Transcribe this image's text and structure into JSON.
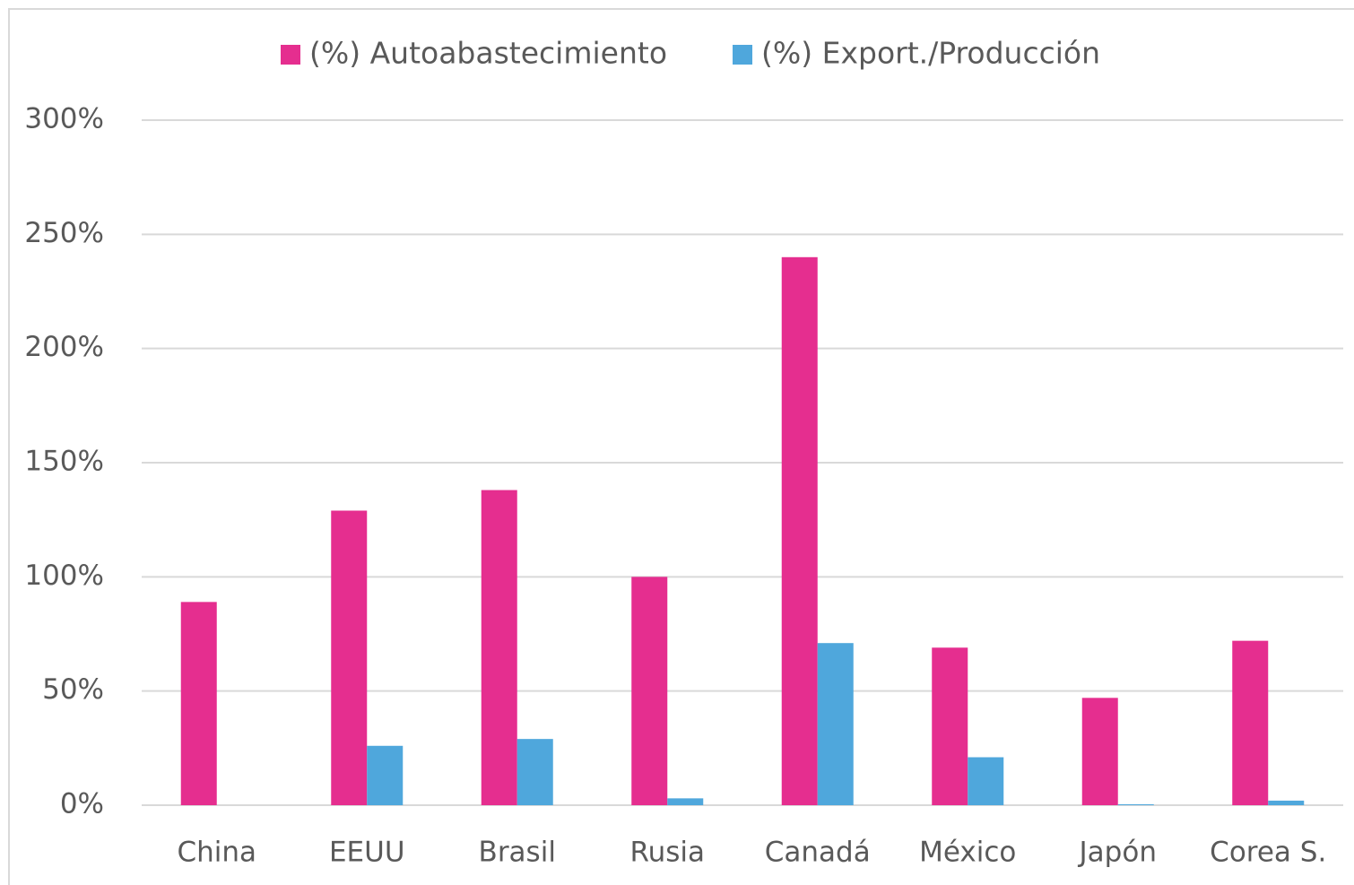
{
  "chart_data": {
    "type": "bar",
    "categories": [
      "China",
      "EEUU",
      "Brasil",
      "Rusia",
      "Canadá",
      "México",
      "Japón",
      "Corea S."
    ],
    "series": [
      {
        "name": "(%) Autoabastecimiento",
        "color": "#e52e8f",
        "values": [
          89,
          129,
          138,
          100,
          240,
          69,
          47,
          72
        ]
      },
      {
        "name": "(%) Export./Producción",
        "color": "#4fa7dc",
        "values": [
          0,
          26,
          29,
          3,
          71,
          21,
          0.4,
          2
        ]
      }
    ],
    "ylim": [
      0,
      300
    ],
    "yticks": [
      {
        "value": 0,
        "label": "0%"
      },
      {
        "value": 50,
        "label": "50%"
      },
      {
        "value": 100,
        "label": "100%"
      },
      {
        "value": 150,
        "label": "150%"
      },
      {
        "value": 200,
        "label": "200%"
      },
      {
        "value": 250,
        "label": "250%"
      },
      {
        "value": 300,
        "label": "300%"
      }
    ],
    "grid": true,
    "legend": "top"
  }
}
